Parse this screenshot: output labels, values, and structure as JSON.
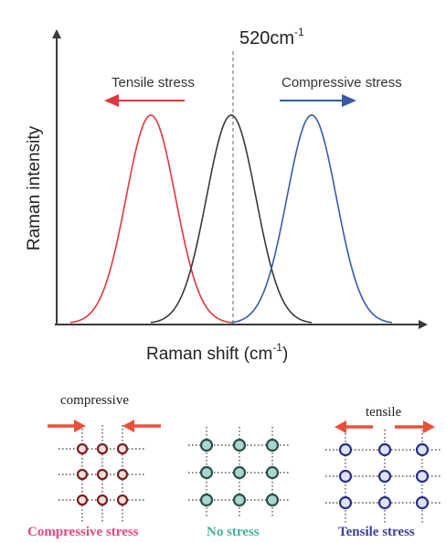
{
  "spectrum": {
    "peak_label": "520cm",
    "peak_label_sup": "-1",
    "tensile_arrow_label": "Tensile stress",
    "compressive_arrow_label": "Compressive stress",
    "y_axis_label": "Raman intensity",
    "x_axis_label": "Raman shift (cm",
    "x_axis_label_sup": "-1",
    "x_axis_label_end": ")",
    "curves": [
      {
        "role": "tensile-shifted",
        "color": "#e2373e"
      },
      {
        "role": "unstressed",
        "color": "#3a3a3a"
      },
      {
        "role": "compressive-shifted",
        "color": "#3a5aa8"
      }
    ],
    "arrow_colors": {
      "tensile": "#e2373e",
      "compressive": "#3a5aa8"
    }
  },
  "lattices": {
    "compressive": {
      "top_label": "compressive",
      "caption": "Compressive stress",
      "caption_color": "#e8467a",
      "atom_color": "#f2dede",
      "atom_border": "#7a1f1f",
      "arrow_color": "#e8503a"
    },
    "none": {
      "caption": "No stress",
      "caption_color": "#3fb39a",
      "atom_color": "#a9d6cf",
      "atom_border": "#2d4f4a"
    },
    "tensile": {
      "top_label": "tensile",
      "caption": "Tensile stress",
      "caption_color": "#3b3ea0",
      "atom_color": "#dfe3f5",
      "atom_border": "#2a2f8a",
      "arrow_color": "#e8503a"
    }
  }
}
